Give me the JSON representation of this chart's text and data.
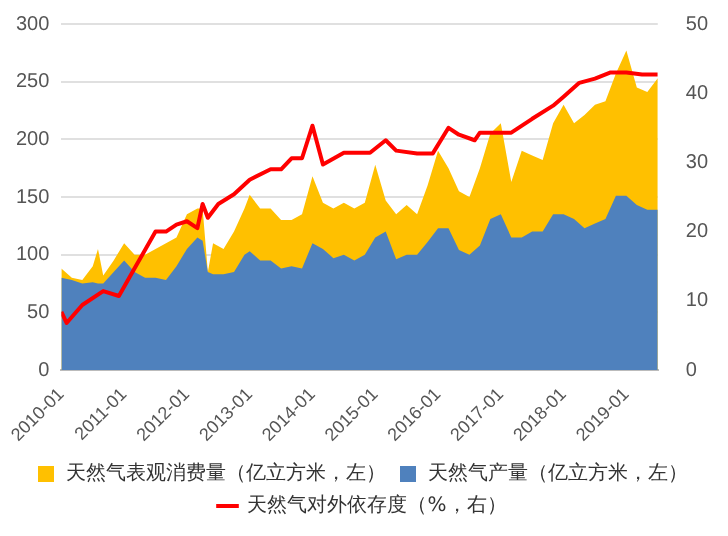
{
  "chart_data": {
    "type": "area",
    "x": [
      "2010-01",
      "2010-03",
      "2010-05",
      "2010-07",
      "2010-08",
      "2010-09",
      "2010-11",
      "2011-01",
      "2011-03",
      "2011-05",
      "2011-07",
      "2011-09",
      "2011-11",
      "2012-01",
      "2012-03",
      "2012-04",
      "2012-05",
      "2012-06",
      "2012-08",
      "2012-10",
      "2012-12",
      "2013-01",
      "2013-03",
      "2013-05",
      "2013-07",
      "2013-09",
      "2013-11",
      "2014-01",
      "2014-03",
      "2014-05",
      "2014-07",
      "2014-09",
      "2014-11",
      "2015-01",
      "2015-03",
      "2015-05",
      "2015-07",
      "2015-09",
      "2015-11",
      "2016-01",
      "2016-03",
      "2016-05",
      "2016-07",
      "2016-09",
      "2016-11",
      "2017-01",
      "2017-03",
      "2017-05",
      "2017-07",
      "2017-09",
      "2017-11",
      "2018-01",
      "2018-03",
      "2018-05",
      "2018-07",
      "2018-09",
      "2018-11",
      "2019-01",
      "2019-03",
      "2019-05",
      "2019-07"
    ],
    "series": [
      {
        "name": "天然气表观消费量（亿立方米，左）",
        "color": "#ffc000",
        "values": [
          88,
          80,
          78,
          90,
          105,
          82,
          95,
          110,
          100,
          100,
          105,
          110,
          115,
          135,
          140,
          140,
          85,
          110,
          105,
          120,
          140,
          152,
          140,
          140,
          130,
          130,
          135,
          168,
          145,
          140,
          145,
          140,
          145,
          178,
          147,
          135,
          143,
          135,
          160,
          190,
          175,
          155,
          150,
          175,
          205,
          214,
          163,
          190,
          186,
          182,
          214,
          230,
          214,
          221,
          230,
          233,
          257,
          277,
          245,
          241,
          253
        ]
      },
      {
        "name": "天然气产量（亿立方米，左）",
        "color": "#4f81bd",
        "values": [
          80,
          78,
          75,
          76,
          75,
          75,
          85,
          95,
          85,
          80,
          80,
          78,
          90,
          105,
          115,
          112,
          85,
          83,
          83,
          85,
          100,
          103,
          95,
          95,
          88,
          90,
          88,
          110,
          105,
          97,
          100,
          95,
          100,
          115,
          120,
          96,
          100,
          100,
          111,
          123,
          123,
          104,
          100,
          108,
          131,
          135,
          115,
          115,
          120,
          120,
          135,
          135,
          131,
          123,
          127,
          131,
          151,
          151,
          143,
          139,
          139
        ]
      },
      {
        "name": "天然气对外依存度（%，右）",
        "type": "line",
        "axis": "y2",
        "color": "#ff0000",
        "x": [
          "2010-01",
          "2010-02",
          "2010-05",
          "2010-09",
          "2010-12",
          "2011-03",
          "2011-07",
          "2011-09",
          "2011-11",
          "2012-01",
          "2012-03",
          "2012-04",
          "2012-05",
          "2012-07",
          "2012-10",
          "2013-01",
          "2013-05",
          "2013-07",
          "2013-09",
          "2013-11",
          "2014-01",
          "2014-03",
          "2014-07",
          "2014-12",
          "2015-03",
          "2015-05",
          "2015-09",
          "2015-12",
          "2016-03",
          "2016-05",
          "2016-08",
          "2016-09",
          "2016-12",
          "2017-03",
          "2017-07",
          "2017-11",
          "2018-01",
          "2018-04",
          "2018-07",
          "2018-10",
          "2019-01",
          "2019-04",
          "2019-07"
        ],
        "values": [
          8.4,
          6.8,
          9.4,
          11.4,
          10.7,
          14.7,
          20,
          20,
          21,
          21.5,
          20.5,
          24,
          22,
          24,
          25.4,
          27.5,
          29,
          29,
          30.6,
          30.6,
          35.3,
          29.7,
          31.4,
          31.4,
          33.2,
          31.7,
          31.3,
          31.3,
          35,
          34,
          33.2,
          34.3,
          34.3,
          34.3,
          36.3,
          38.2,
          39.5,
          41.5,
          42.1,
          43,
          43,
          42.7,
          42.7
        ]
      }
    ],
    "xlim": [
      "2010-01",
      "2019-07"
    ],
    "xticks": [
      "2010-01",
      "2011-01",
      "2012-01",
      "2013-01",
      "2014-01",
      "2015-01",
      "2016-01",
      "2017-01",
      "2018-01",
      "2019-01"
    ],
    "ylim": [
      0,
      300
    ],
    "yticks": [
      0,
      50,
      100,
      150,
      200,
      250,
      300
    ],
    "y2lim": [
      0,
      50
    ],
    "y2ticks": [
      0,
      10,
      20,
      30,
      40,
      50
    ],
    "grid": "y",
    "legend": "bottom"
  }
}
